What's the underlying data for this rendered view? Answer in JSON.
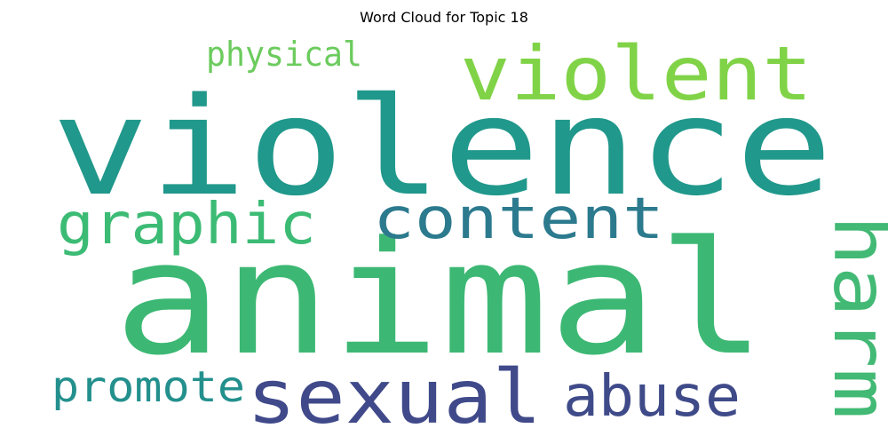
{
  "title": "Word Cloud for Topic 18",
  "words": [
    {
      "text": "violence",
      "color": "#20988b",
      "orientation": "horizontal"
    },
    {
      "text": "animal",
      "color": "#3cb874",
      "orientation": "horizontal"
    },
    {
      "text": "violent",
      "color": "#80d347",
      "orientation": "horizontal"
    },
    {
      "text": "sexual",
      "color": "#404a8a",
      "orientation": "horizontal"
    },
    {
      "text": "harm",
      "color": "#42b974",
      "orientation": "vertical"
    },
    {
      "text": "graphic",
      "color": "#3cbb75",
      "orientation": "horizontal"
    },
    {
      "text": "content",
      "color": "#2c7a8e",
      "orientation": "horizontal"
    },
    {
      "text": "abuse",
      "color": "#3f4b89",
      "orientation": "horizontal"
    },
    {
      "text": "promote",
      "color": "#23908d",
      "orientation": "horizontal"
    },
    {
      "text": "physical",
      "color": "#6ccb5e",
      "orientation": "horizontal"
    }
  ]
}
